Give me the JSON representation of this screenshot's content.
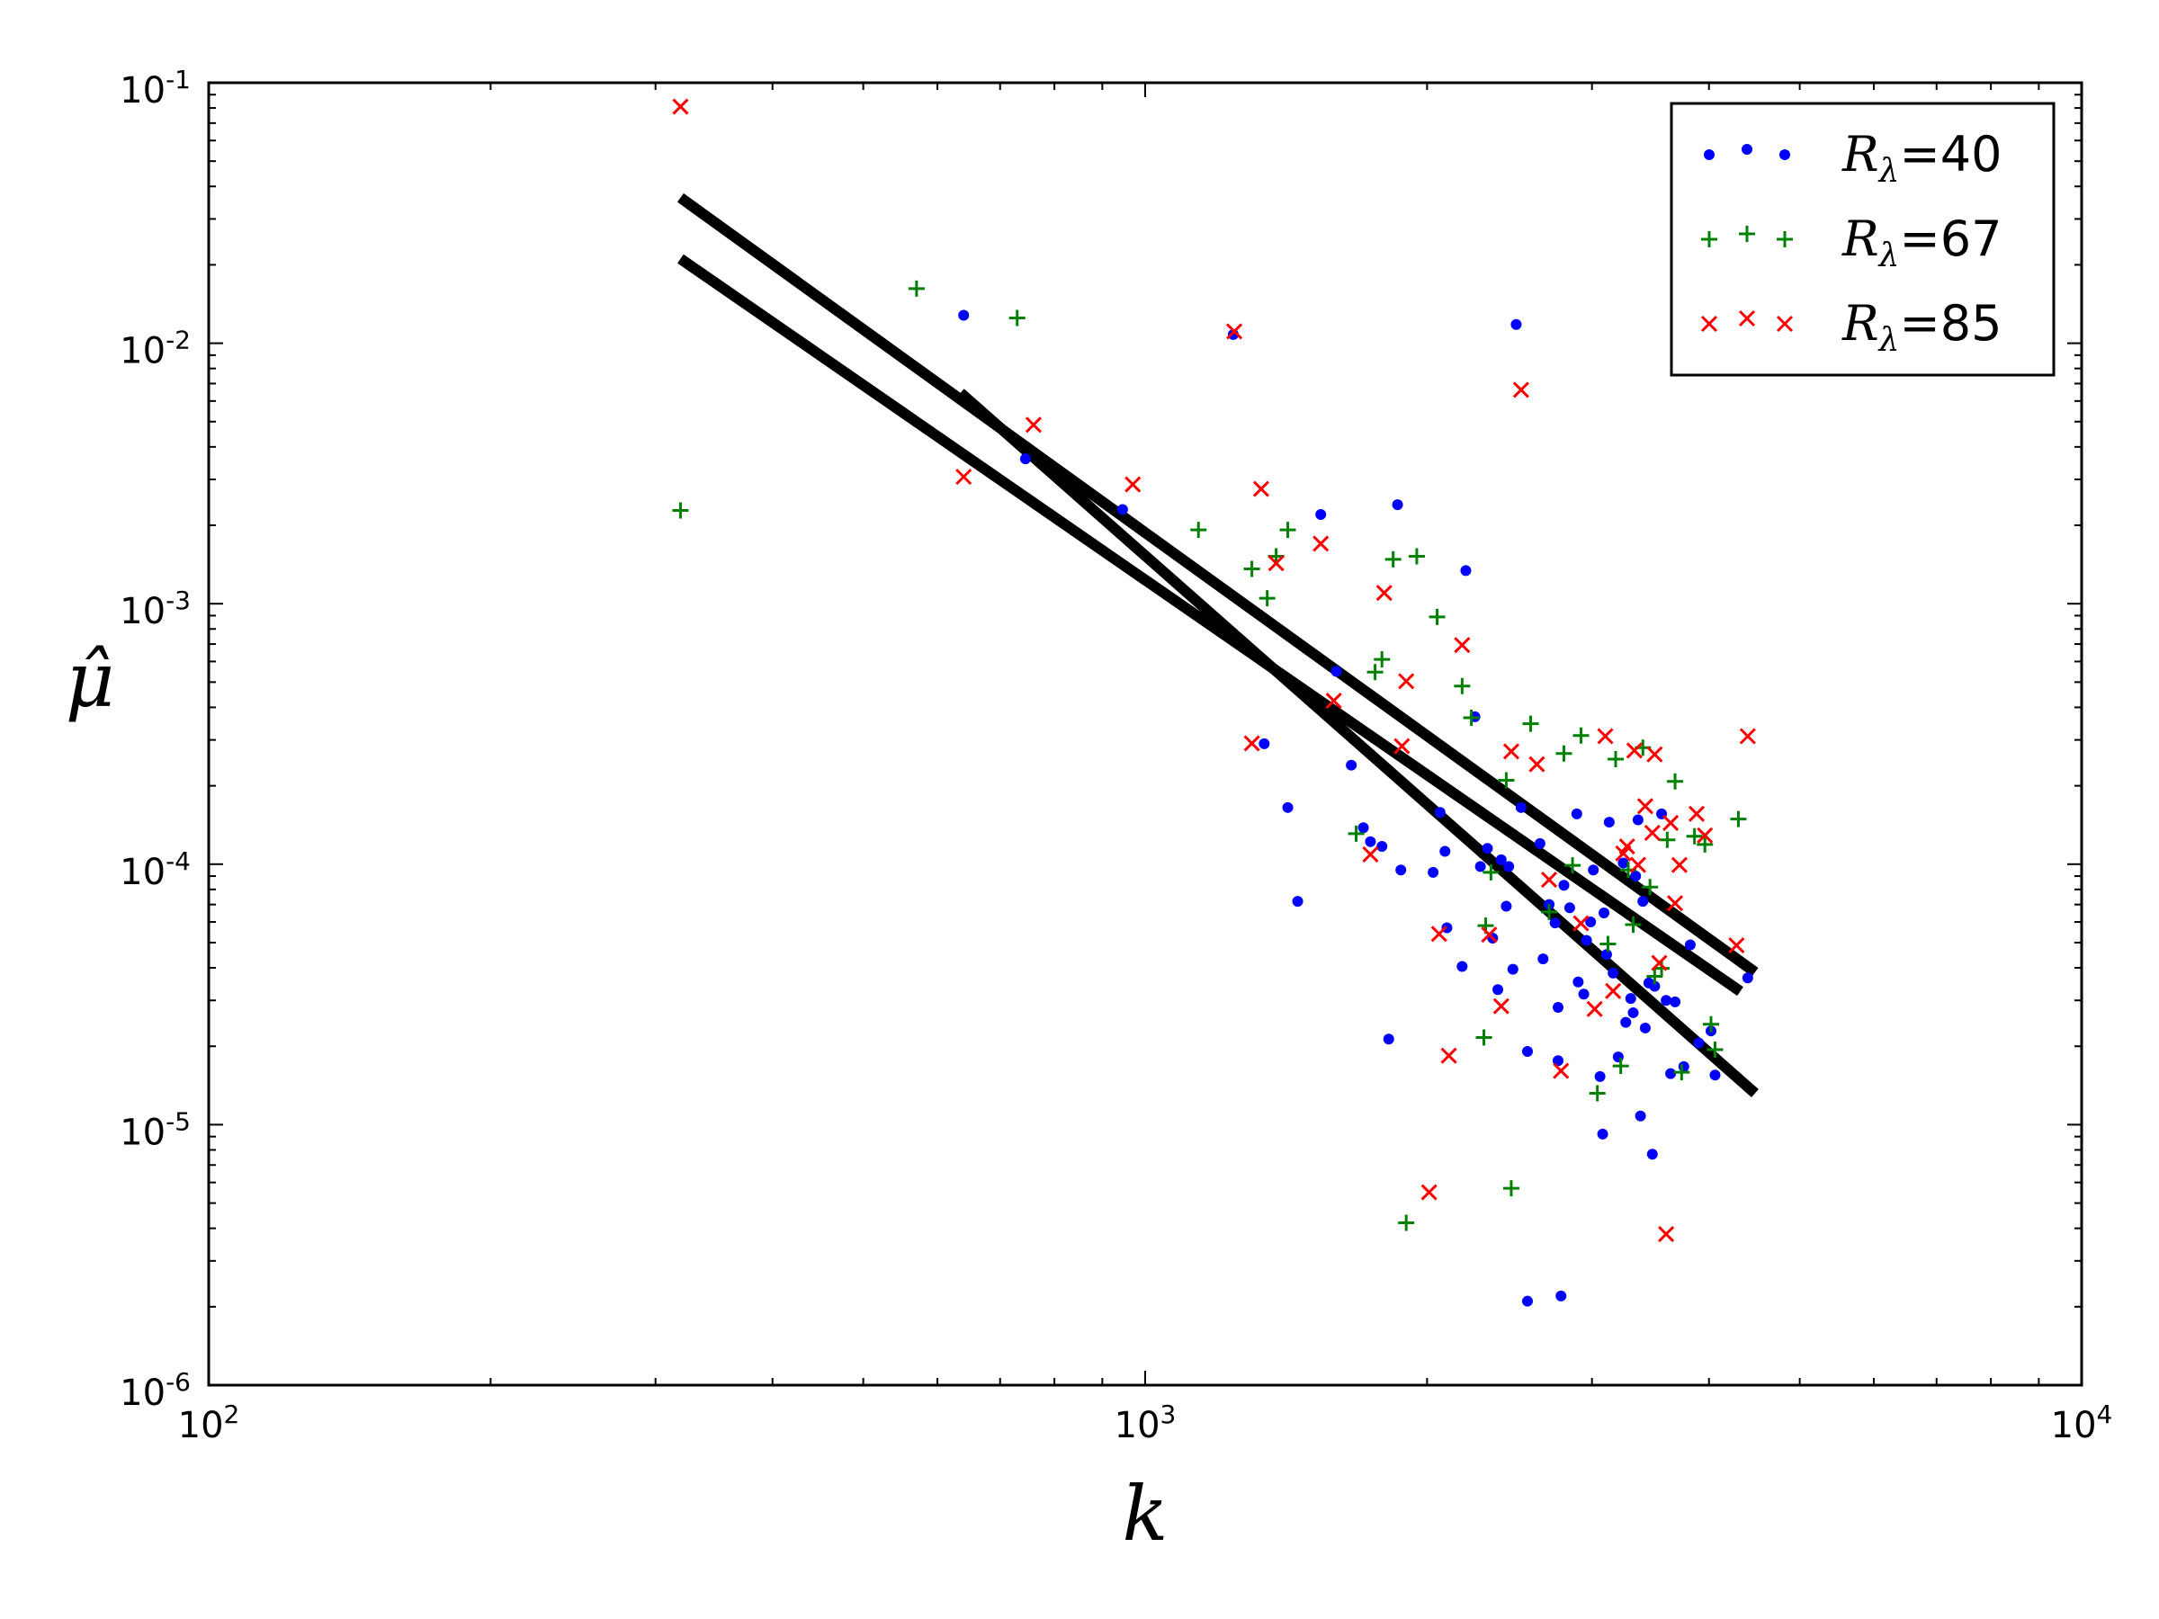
{
  "chart_data": {
    "type": "scatter",
    "xlabel": "k",
    "ylabel": "μ̂",
    "xscale": "log",
    "yscale": "log",
    "xlim": [
      100,
      10000
    ],
    "ylim": [
      1e-06,
      0.1
    ],
    "grid": false,
    "legend_position": "top-right",
    "x_ticks": [
      {
        "value": 100,
        "base": "10",
        "exp": "2"
      },
      {
        "value": 1000,
        "base": "10",
        "exp": "3"
      },
      {
        "value": 10000,
        "base": "10",
        "exp": "4"
      }
    ],
    "y_ticks": [
      {
        "value": 1e-06,
        "base": "10",
        "exp": "-6"
      },
      {
        "value": 1e-05,
        "base": "10",
        "exp": "-5"
      },
      {
        "value": 0.0001,
        "base": "10",
        "exp": "-4"
      },
      {
        "value": 0.001,
        "base": "10",
        "exp": "-3"
      },
      {
        "value": 0.01,
        "base": "10",
        "exp": "-2"
      },
      {
        "value": 0.1,
        "base": "10",
        "exp": "-1"
      }
    ],
    "series": [
      {
        "name": "R_λ=40",
        "legend_base": "R",
        "legend_sub": "λ",
        "legend_value": "=40",
        "marker": "dot",
        "color": "#0000ff",
        "points": [
          [
            640,
            0.0128
          ],
          [
            745,
            0.0036
          ],
          [
            946,
            0.0023
          ],
          [
            1242,
            0.0108
          ],
          [
            1340,
            0.00029
          ],
          [
            1420,
            0.000165
          ],
          [
            1455,
            7.2e-05
          ],
          [
            1540,
            0.0022
          ],
          [
            1600,
            0.00055
          ],
          [
            1660,
            0.00024
          ],
          [
            1710,
            0.000138
          ],
          [
            1740,
            0.000122
          ],
          [
            1790,
            0.000117
          ],
          [
            1820,
            2.13e-05
          ],
          [
            1860,
            0.0024
          ],
          [
            1875,
            9.5e-05
          ],
          [
            2030,
            9.3e-05
          ],
          [
            2065,
            0.000158
          ],
          [
            2090,
            0.000112
          ],
          [
            2100,
            5.7e-05
          ],
          [
            2180,
            4.05e-05
          ],
          [
            2200,
            0.00134
          ],
          [
            2250,
            0.000368
          ],
          [
            2280,
            9.8e-05
          ],
          [
            2320,
            0.000115
          ],
          [
            2350,
            5.2e-05
          ],
          [
            2380,
            3.3e-05
          ],
          [
            2400,
            0.000104
          ],
          [
            2430,
            6.9e-05
          ],
          [
            2445,
            9.8e-05
          ],
          [
            2470,
            3.95e-05
          ],
          [
            2490,
            0.0118
          ],
          [
            2520,
            0.000165
          ],
          [
            2560,
            1.91e-05
          ],
          [
            2560,
            2.1e-06
          ],
          [
            2640,
            0.00012
          ],
          [
            2660,
            4.33e-05
          ],
          [
            2700,
            7e-05
          ],
          [
            2740,
            5.95e-05
          ],
          [
            2760,
            1.76e-05
          ],
          [
            2760,
            2.82e-05
          ],
          [
            2780,
            2.2e-06
          ],
          [
            2800,
            8.3e-05
          ],
          [
            2840,
            6.8e-05
          ],
          [
            2890,
            0.000156
          ],
          [
            2900,
            3.53e-05
          ],
          [
            2940,
            3.17e-05
          ],
          [
            2960,
            5.1e-05
          ],
          [
            2990,
            6e-05
          ],
          [
            3010,
            9.5e-05
          ],
          [
            3060,
            1.53e-05
          ],
          [
            3080,
            9.2e-06
          ],
          [
            3090,
            6.5e-05
          ],
          [
            3110,
            4.5e-05
          ],
          [
            3130,
            0.000145
          ],
          [
            3160,
            3.82e-05
          ],
          [
            3200,
            1.82e-05
          ],
          [
            3240,
            0.000101
          ],
          [
            3260,
            2.47e-05
          ],
          [
            3300,
            3.05e-05
          ],
          [
            3320,
            2.69e-05
          ],
          [
            3340,
            9e-05
          ],
          [
            3360,
            0.000148
          ],
          [
            3380,
            1.08e-05
          ],
          [
            3400,
            7.2e-05
          ],
          [
            3420,
            2.35e-05
          ],
          [
            3450,
            3.5e-05
          ],
          [
            3480,
            7.7e-06
          ],
          [
            3500,
            3.4e-05
          ],
          [
            3560,
            0.000156
          ],
          [
            3600,
            3e-05
          ],
          [
            3640,
            1.57e-05
          ],
          [
            3680,
            2.96e-05
          ],
          [
            3760,
            1.67e-05
          ],
          [
            3820,
            4.9e-05
          ],
          [
            3900,
            2.06e-05
          ],
          [
            4020,
            2.29e-05
          ],
          [
            4060,
            1.55e-05
          ],
          [
            4400,
            3.66e-05
          ]
        ]
      },
      {
        "name": "R_λ=67",
        "legend_base": "R",
        "legend_sub": "λ",
        "legend_value": "=67",
        "marker": "plus",
        "color": "#008000",
        "points": [
          [
            319,
            0.00228
          ],
          [
            570,
            0.0162
          ],
          [
            730,
            0.0125
          ],
          [
            1140,
            0.00192
          ],
          [
            1300,
            0.00136
          ],
          [
            1350,
            0.00105
          ],
          [
            1380,
            0.00152
          ],
          [
            1420,
            0.00192
          ],
          [
            1680,
            0.000131
          ],
          [
            1760,
            0.000546
          ],
          [
            1790,
            0.000611
          ],
          [
            1840,
            0.00148
          ],
          [
            1900,
            4.2e-06
          ],
          [
            1950,
            0.00152
          ],
          [
            2050,
            0.00089
          ],
          [
            2180,
            0.000483
          ],
          [
            2230,
            0.000365
          ],
          [
            2300,
            2.16e-05
          ],
          [
            2310,
            5.81e-05
          ],
          [
            2340,
            9.3e-05
          ],
          [
            2430,
            0.00021
          ],
          [
            2460,
            5.7e-06
          ],
          [
            2580,
            0.000346
          ],
          [
            2700,
            6.56e-05
          ],
          [
            2800,
            0.000266
          ],
          [
            2860,
            9.9e-05
          ],
          [
            2920,
            0.000312
          ],
          [
            3040,
            1.32e-05
          ],
          [
            3120,
            4.94e-05
          ],
          [
            3180,
            0.000253
          ],
          [
            3220,
            1.68e-05
          ],
          [
            3280,
            9.5e-05
          ],
          [
            3320,
            5.86e-05
          ],
          [
            3400,
            0.00028
          ],
          [
            3460,
            8.17e-05
          ],
          [
            3500,
            3.71e-05
          ],
          [
            3560,
            3.98e-05
          ],
          [
            3610,
            0.000124
          ],
          [
            3680,
            0.000208
          ],
          [
            3740,
            1.59e-05
          ],
          [
            3860,
            0.000128
          ],
          [
            3960,
            0.000119
          ],
          [
            4020,
            2.43e-05
          ],
          [
            4060,
            1.94e-05
          ],
          [
            4300,
            0.000149
          ]
        ]
      },
      {
        "name": "R_λ=85",
        "legend_base": "R",
        "legend_sub": "λ",
        "legend_value": "=85",
        "marker": "x",
        "color": "#ff0000",
        "points": [
          [
            319,
            0.081
          ],
          [
            640,
            0.00307
          ],
          [
            760,
            0.00486
          ],
          [
            970,
            0.00287
          ],
          [
            1245,
            0.0111
          ],
          [
            1300,
            0.000291
          ],
          [
            1330,
            0.00276
          ],
          [
            1380,
            0.00143
          ],
          [
            1540,
            0.0017
          ],
          [
            1590,
            0.000424
          ],
          [
            1740,
            0.000109
          ],
          [
            1800,
            0.0011
          ],
          [
            1880,
            0.000284
          ],
          [
            1900,
            0.000504
          ],
          [
            2010,
            5.5e-06
          ],
          [
            2060,
            5.4e-05
          ],
          [
            2110,
            1.84e-05
          ],
          [
            2180,
            0.000694
          ],
          [
            2330,
            5.36e-05
          ],
          [
            2400,
            2.85e-05
          ],
          [
            2460,
            0.000271
          ],
          [
            2520,
            0.00662
          ],
          [
            2620,
            0.000242
          ],
          [
            2700,
            8.72e-05
          ],
          [
            2780,
            1.61e-05
          ],
          [
            2920,
            5.93e-05
          ],
          [
            3020,
            2.78e-05
          ],
          [
            3100,
            0.00031
          ],
          [
            3160,
            3.26e-05
          ],
          [
            3240,
            0.00011
          ],
          [
            3270,
            0.000117
          ],
          [
            3330,
            0.000273
          ],
          [
            3360,
            9.94e-05
          ],
          [
            3420,
            0.000167
          ],
          [
            3480,
            0.000132
          ],
          [
            3500,
            0.000264
          ],
          [
            3540,
            4.18e-05
          ],
          [
            3600,
            3.8e-06
          ],
          [
            3640,
            0.000144
          ],
          [
            3680,
            7.08e-05
          ],
          [
            3720,
            9.93e-05
          ],
          [
            3880,
            0.000156
          ],
          [
            3960,
            0.000129
          ],
          [
            4280,
            4.88e-05
          ],
          [
            4400,
            0.00031
          ]
        ]
      }
    ],
    "fit_lines": [
      {
        "from": [
          319,
          0.0362
        ],
        "to": [
          4480,
          3.85e-05
        ]
      },
      {
        "from": [
          319,
          0.0211
        ],
        "to": [
          4320,
          3.25e-05
        ]
      },
      {
        "from": [
          635,
          0.00645
        ],
        "to": [
          4480,
          1.32e-05
        ]
      }
    ]
  }
}
